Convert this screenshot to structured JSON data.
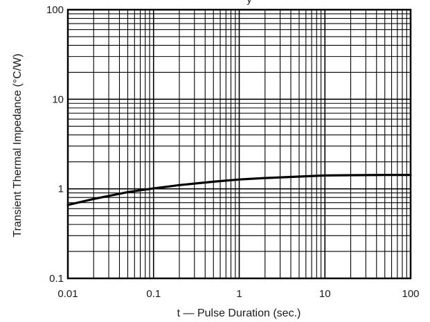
{
  "chart_data": {
    "type": "line",
    "title_fragment": "y",
    "xlabel": "t — Pulse Duration (sec.)",
    "ylabel": "Transient Thermal Impedance (°C/W)",
    "x_scale": "log",
    "y_scale": "log",
    "xlim": [
      0.01,
      100
    ],
    "ylim": [
      0.1,
      100
    ],
    "x_ticks": [
      "0.01",
      "0.1",
      "1",
      "10",
      "100"
    ],
    "y_ticks": [
      "100",
      "10",
      "1",
      "0.1"
    ],
    "grid": true,
    "series": [
      {
        "x": [
          0.01,
          0.02,
          0.05,
          0.1,
          0.2,
          0.5,
          1,
          2,
          5,
          10,
          20,
          50,
          100
        ],
        "y": [
          0.66,
          0.77,
          0.92,
          1.01,
          1.1,
          1.2,
          1.27,
          1.32,
          1.37,
          1.41,
          1.42,
          1.43,
          1.43
        ],
        "color": "#000000"
      }
    ]
  }
}
